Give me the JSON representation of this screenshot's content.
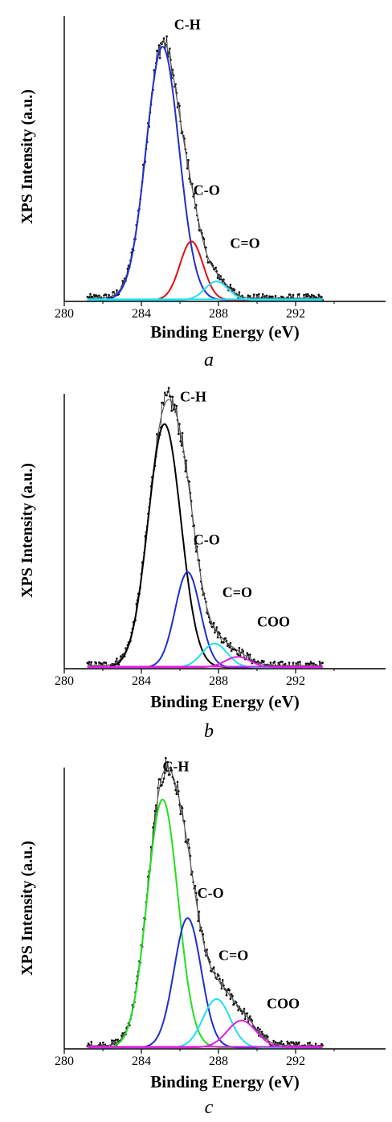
{
  "colors": {
    "raw": "#000000",
    "CH_a": "#1f2fd0",
    "CO_a": "#e01010",
    "CO_b": "#1f2fd0",
    "CH_bc": "#000000",
    "CH_c": "#20e020",
    "C=O": "#20e0f0",
    "COO": "#e020e0",
    "envelope": "#555555"
  },
  "panels": [
    {
      "label": "a",
      "xlabel": "Binding Energy (eV)",
      "ylabel": "XPS Intensity (a.u.)",
      "peak_labels": [
        {
          "text": "C-H",
          "x": 285.7,
          "y": 1.02
        },
        {
          "text": "C-O",
          "x": 286.7,
          "y": 0.4
        },
        {
          "text": "C=O",
          "x": 288.6,
          "y": 0.2
        }
      ]
    },
    {
      "label": "b",
      "xlabel": "Binding Energy (eV)",
      "ylabel": "XPS Intensity (a.u.)",
      "peak_labels": [
        {
          "text": "C-H",
          "x": 286.0,
          "y": 1.01
        },
        {
          "text": "C-O",
          "x": 286.7,
          "y": 0.47
        },
        {
          "text": "C=O",
          "x": 288.2,
          "y": 0.27
        },
        {
          "text": "COO",
          "x": 290.0,
          "y": 0.16
        }
      ]
    },
    {
      "label": "c",
      "xlabel": "Binding Energy (eV)",
      "ylabel": "XPS Intensity (a.u.)",
      "peak_labels": [
        {
          "text": "C-H",
          "x": 285.1,
          "y": 1.03
        },
        {
          "text": "C-O",
          "x": 286.9,
          "y": 0.56
        },
        {
          "text": "C=O",
          "x": 288.0,
          "y": 0.33
        },
        {
          "text": "COO",
          "x": 290.5,
          "y": 0.15
        }
      ]
    }
  ],
  "chart_data": [
    {
      "type": "line",
      "xlim": [
        280,
        295
      ],
      "ticks": [
        280,
        284,
        288,
        292
      ],
      "ylim": [
        0,
        1.1
      ],
      "series": [
        {
          "name": "C-H",
          "center": 285.1,
          "height": 0.95,
          "sigma": 0.85
        },
        {
          "name": "C-O",
          "center": 286.6,
          "height": 0.22,
          "sigma": 0.6
        },
        {
          "name": "C=O",
          "center": 287.9,
          "height": 0.07,
          "sigma": 0.6
        }
      ]
    },
    {
      "type": "line",
      "xlim": [
        280,
        295
      ],
      "ticks": [
        280,
        284,
        288,
        292
      ],
      "ylim": [
        0,
        1.1
      ],
      "series": [
        {
          "name": "C-H",
          "center": 285.2,
          "height": 0.92,
          "sigma": 0.85
        },
        {
          "name": "C-O",
          "center": 286.4,
          "height": 0.36,
          "sigma": 0.65
        },
        {
          "name": "C=O",
          "center": 287.8,
          "height": 0.09,
          "sigma": 0.65
        },
        {
          "name": "COO",
          "center": 289.0,
          "height": 0.04,
          "sigma": 0.65
        }
      ]
    },
    {
      "type": "line",
      "xlim": [
        280,
        295
      ],
      "ticks": [
        280,
        284,
        288,
        292
      ],
      "ylim": [
        0,
        1.1
      ],
      "series": [
        {
          "name": "C-H",
          "center": 285.1,
          "height": 0.92,
          "sigma": 0.8
        },
        {
          "name": "C-O",
          "center": 286.4,
          "height": 0.48,
          "sigma": 0.7
        },
        {
          "name": "C=O",
          "center": 287.9,
          "height": 0.18,
          "sigma": 0.7
        },
        {
          "name": "COO",
          "center": 289.2,
          "height": 0.1,
          "sigma": 0.75
        }
      ]
    }
  ]
}
